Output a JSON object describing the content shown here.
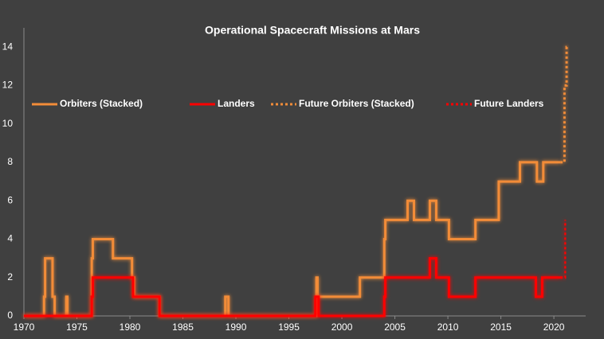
{
  "chart_data": {
    "type": "line",
    "title": "Operational Spacecraft Missions at Mars",
    "xlim": [
      1970,
      2023
    ],
    "xticks": [
      1970,
      1975,
      1980,
      1985,
      1990,
      1995,
      2000,
      2005,
      2010,
      2015,
      2020
    ],
    "ylim": [
      0,
      15
    ],
    "yticks": [
      0,
      2,
      4,
      6,
      8,
      10,
      12,
      14
    ],
    "grid": false,
    "legend": "top",
    "glow": true,
    "series": [
      {
        "name": "Orbiters (Stacked)",
        "color": "#f28c38",
        "linestyle": "solid",
        "x": [
          1970,
          1971.9,
          1971.9,
          1972.0,
          1972.0,
          1972.7,
          1972.7,
          1972.9,
          1972.9,
          1974.0,
          1974.0,
          1974.1,
          1974.1,
          1976.4,
          1976.4,
          1976.5,
          1976.5,
          1978.4,
          1978.4,
          1980.2,
          1980.2,
          1980.4,
          1980.4,
          1982.8,
          1982.8,
          1989.0,
          1989.0,
          1989.3,
          1989.3,
          1997.6,
          1997.6,
          1997.7,
          1997.7,
          2001.7,
          2001.7,
          2004.0,
          2004.0,
          2004.1,
          2004.1,
          2006.2,
          2006.2,
          2006.8,
          2006.8,
          2008.3,
          2008.3,
          2008.9,
          2008.9,
          2010.1,
          2010.1,
          2012.6,
          2012.6,
          2014.8,
          2014.8,
          2016.8,
          2016.8,
          2018.4,
          2018.4,
          2019.0,
          2019.0,
          2020.6
        ],
        "values": [
          0,
          0,
          1,
          1,
          3,
          3,
          1,
          1,
          0,
          0,
          1,
          1,
          0,
          0,
          3,
          3,
          4,
          4,
          3,
          3,
          2,
          2,
          1,
          1,
          0,
          0,
          1,
          1,
          0,
          0,
          2,
          2,
          1,
          1,
          2,
          2,
          4,
          4,
          5,
          5,
          6,
          6,
          5,
          5,
          6,
          6,
          5,
          5,
          4,
          4,
          5,
          5,
          7,
          7,
          8,
          8,
          7,
          7,
          8,
          8
        ]
      },
      {
        "name": "Landers",
        "color": "#ff0000",
        "linestyle": "solid",
        "x": [
          1970,
          1976.4,
          1976.4,
          1976.5,
          1976.5,
          1980.3,
          1980.3,
          1982.8,
          1982.8,
          1997.5,
          1997.5,
          1997.8,
          1997.8,
          2004.0,
          2004.0,
          2004.1,
          2004.1,
          2008.3,
          2008.3,
          2008.9,
          2008.9,
          2010.1,
          2010.1,
          2012.6,
          2012.6,
          2018.3,
          2018.3,
          2018.9,
          2018.9,
          2020.6
        ],
        "values": [
          0,
          0,
          1,
          1,
          2,
          2,
          1,
          1,
          0,
          0,
          1,
          1,
          0,
          0,
          1,
          1,
          2,
          2,
          3,
          3,
          2,
          2,
          1,
          1,
          2,
          2,
          1,
          1,
          2,
          2
        ]
      },
      {
        "name": "Future Orbiters (Stacked)",
        "color": "#f28c38",
        "linestyle": "dotted",
        "x": [
          2020.6,
          2021.0,
          2021.0,
          2021.2,
          2021.2,
          2021.4
        ],
        "values": [
          8,
          8,
          12,
          12,
          14,
          14
        ]
      },
      {
        "name": "Future Landers",
        "color": "#ff0000",
        "linestyle": "dotted",
        "x": [
          2020.6,
          2021.1,
          2021.1
        ],
        "values": [
          2,
          2,
          5
        ]
      }
    ]
  }
}
